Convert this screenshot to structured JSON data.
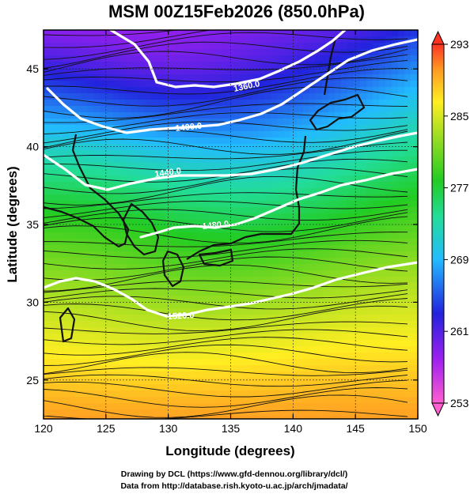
{
  "title": "MSM 00Z15Feb2026 (850.0hPa)",
  "x_axis": {
    "label": "Longitude (degrees)",
    "range": [
      120,
      150
    ],
    "ticks": [
      120,
      125,
      130,
      135,
      140,
      145,
      150
    ]
  },
  "y_axis": {
    "label": "Latitude  (degrees)",
    "range": [
      22.5,
      47.5
    ],
    "ticks": [
      25,
      30,
      35,
      40,
      45
    ]
  },
  "colorbar": {
    "range": [
      253,
      293
    ],
    "ticks": [
      253,
      261,
      269,
      277,
      285,
      293
    ]
  },
  "contours": [
    {
      "label": "1360.0"
    },
    {
      "label": "1400.0"
    },
    {
      "label": "1440.0"
    },
    {
      "label": "1480.0"
    },
    {
      "label": "1520.0"
    }
  ],
  "footer": {
    "line1": "Drawing by DCL (https://www.gfd-dennou.org/library/dcl/)",
    "line2": "Data from http://database.rish.kyoto-u.ac.jp/arch/jmadata/"
  }
}
